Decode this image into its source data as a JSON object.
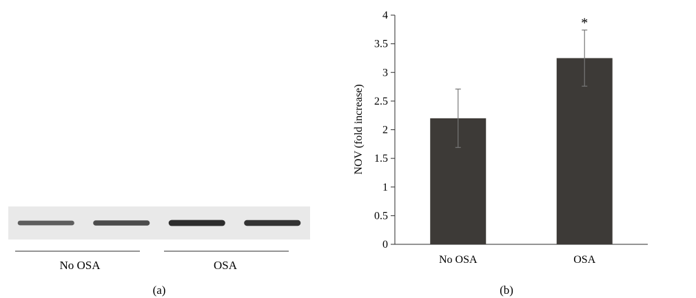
{
  "panel_a": {
    "letter": "(a)",
    "groups": [
      {
        "label": "No OSA",
        "band_intensities": [
          0.55,
          0.7
        ]
      },
      {
        "label": "OSA",
        "band_intensities": [
          0.95,
          0.9
        ]
      }
    ],
    "blot_background": "#e9e9e9",
    "band_color": "#1c1c1c"
  },
  "panel_b": {
    "letter": "(b)",
    "chart_data": {
      "type": "bar",
      "categories": [
        "No OSA",
        "OSA"
      ],
      "values": [
        2.2,
        3.25
      ],
      "errors": [
        0.51,
        0.49
      ],
      "annotations": [
        "",
        "*"
      ],
      "ylabel": "NOV (fold increase)",
      "xlabel": "",
      "ylim": [
        0,
        4
      ],
      "yticks": [
        0,
        0.5,
        1,
        1.5,
        2,
        2.5,
        3,
        3.5,
        4
      ],
      "ytick_labels": [
        "0",
        "0.5",
        "1",
        "1.5",
        "2",
        "2.5",
        "3",
        "3.5",
        "4"
      ],
      "grid": false,
      "bar_color": "#3d3a37",
      "error_bar_color": "#777777"
    }
  }
}
